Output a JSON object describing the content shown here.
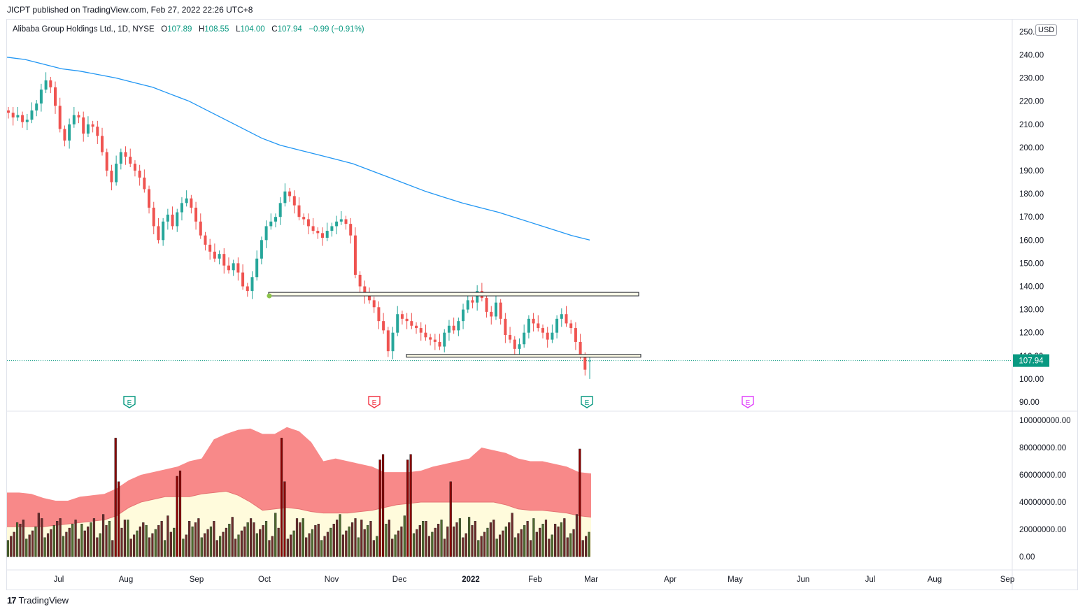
{
  "publisher": "JICPT published on TradingView.com, Feb 27, 2022 22:26 UTC+8",
  "legend": {
    "symbol": "Alibaba Group Holdings Ltd., 1D, NYSE",
    "o_label": "O",
    "o": "107.89",
    "h_label": "H",
    "h": "108.55",
    "l_label": "L",
    "l": "104.00",
    "c_label": "C",
    "c": "107.94",
    "change": "−0.99 (−0.91%)"
  },
  "currency": "USD",
  "last_price": "107.94",
  "footer": {
    "logo": "17",
    "brand": "TradingView"
  },
  "colors": {
    "up": "#26a69a",
    "down": "#ef5350",
    "ma": "#2196f3",
    "band_red": "#f77c7c",
    "band_cream": "#fffbdc",
    "earnings_past": "#089981",
    "earnings_red": "#f23645",
    "earnings_future": "#e040fb"
  },
  "chart_data": [
    {
      "type": "candlestick",
      "title": "Alibaba Group Holdings Ltd., 1D, NYSE",
      "x_ticks": [
        "Jul",
        "Aug",
        "Sep",
        "Oct",
        "Nov",
        "Dec",
        "2022",
        "Feb",
        "Mar",
        "Apr",
        "May",
        "Jun",
        "Jul",
        "Aug",
        "Sep"
      ],
      "y_ticks": [
        "250.00",
        "240.00",
        "230.00",
        "220.00",
        "210.00",
        "200.00",
        "190.00",
        "180.00",
        "170.00",
        "160.00",
        "150.00",
        "140.00",
        "130.00",
        "120.00",
        "110.00",
        "100.00",
        "90.00"
      ],
      "ylim": [
        90,
        250
      ],
      "closes": [
        215,
        213,
        214,
        211,
        212,
        216,
        219,
        225,
        229,
        226,
        218,
        208,
        203,
        210,
        214,
        213,
        206,
        210,
        209,
        205,
        198,
        190,
        185,
        193,
        198,
        196,
        193,
        190,
        187,
        182,
        174,
        166,
        160,
        168,
        171,
        166,
        172,
        176,
        178,
        174,
        168,
        162,
        158,
        155,
        152,
        154,
        149,
        147,
        150,
        146,
        140,
        138,
        144,
        152,
        160,
        166,
        168,
        170,
        176,
        181,
        179,
        175,
        170,
        169,
        166,
        164,
        163,
        161,
        164,
        166,
        168,
        169,
        167,
        162,
        145,
        140,
        136,
        134,
        131,
        125,
        121,
        112,
        120,
        128,
        126,
        125,
        123,
        122,
        120,
        118,
        117,
        116,
        114,
        120,
        123,
        121,
        125,
        130,
        134,
        133,
        138,
        135,
        129,
        127,
        133,
        126,
        119,
        117,
        113,
        115,
        120,
        126,
        124,
        122,
        120,
        117,
        120,
        126,
        128,
        124,
        122,
        116,
        110,
        104,
        107.94
      ],
      "ma200": [
        239,
        238,
        236,
        234,
        233,
        231.5,
        230,
        228,
        226,
        223,
        220,
        216,
        212,
        208,
        204,
        201,
        199,
        197,
        195,
        193,
        190,
        187,
        184,
        181,
        178.5,
        176,
        174,
        172,
        169.5,
        167,
        164.5,
        162,
        160
      ],
      "horizontal_levels": [
        136.5,
        110
      ]
    },
    {
      "type": "bar",
      "title": "Volume",
      "y_ticks": [
        "100000000.00",
        "80000000.00",
        "60000000.00",
        "40000000.00",
        "20000000.00",
        "0.00"
      ],
      "ylim": [
        0,
        100000000
      ],
      "upper_band": [
        47,
        47,
        46,
        43,
        41,
        41,
        44,
        45,
        46,
        50,
        56,
        60,
        62,
        64,
        66,
        70,
        72,
        86,
        90,
        93,
        94,
        90,
        90,
        95,
        92,
        84,
        70,
        72,
        70,
        68,
        66,
        62,
        62,
        62,
        63,
        66,
        68,
        70,
        72,
        80,
        78,
        76,
        72,
        70,
        70,
        68,
        66,
        62,
        61
      ],
      "lower_band": [
        22,
        22,
        22,
        22,
        23,
        24,
        25,
        26,
        27,
        30,
        36,
        40,
        42,
        44,
        44,
        44,
        46,
        47,
        48,
        45,
        40,
        34,
        35,
        36,
        35,
        33,
        32,
        32,
        32,
        33,
        34,
        36,
        38,
        39,
        40,
        40,
        40,
        40,
        40,
        40,
        40,
        38,
        35,
        34,
        34,
        33,
        32,
        30,
        29
      ]
    }
  ]
}
